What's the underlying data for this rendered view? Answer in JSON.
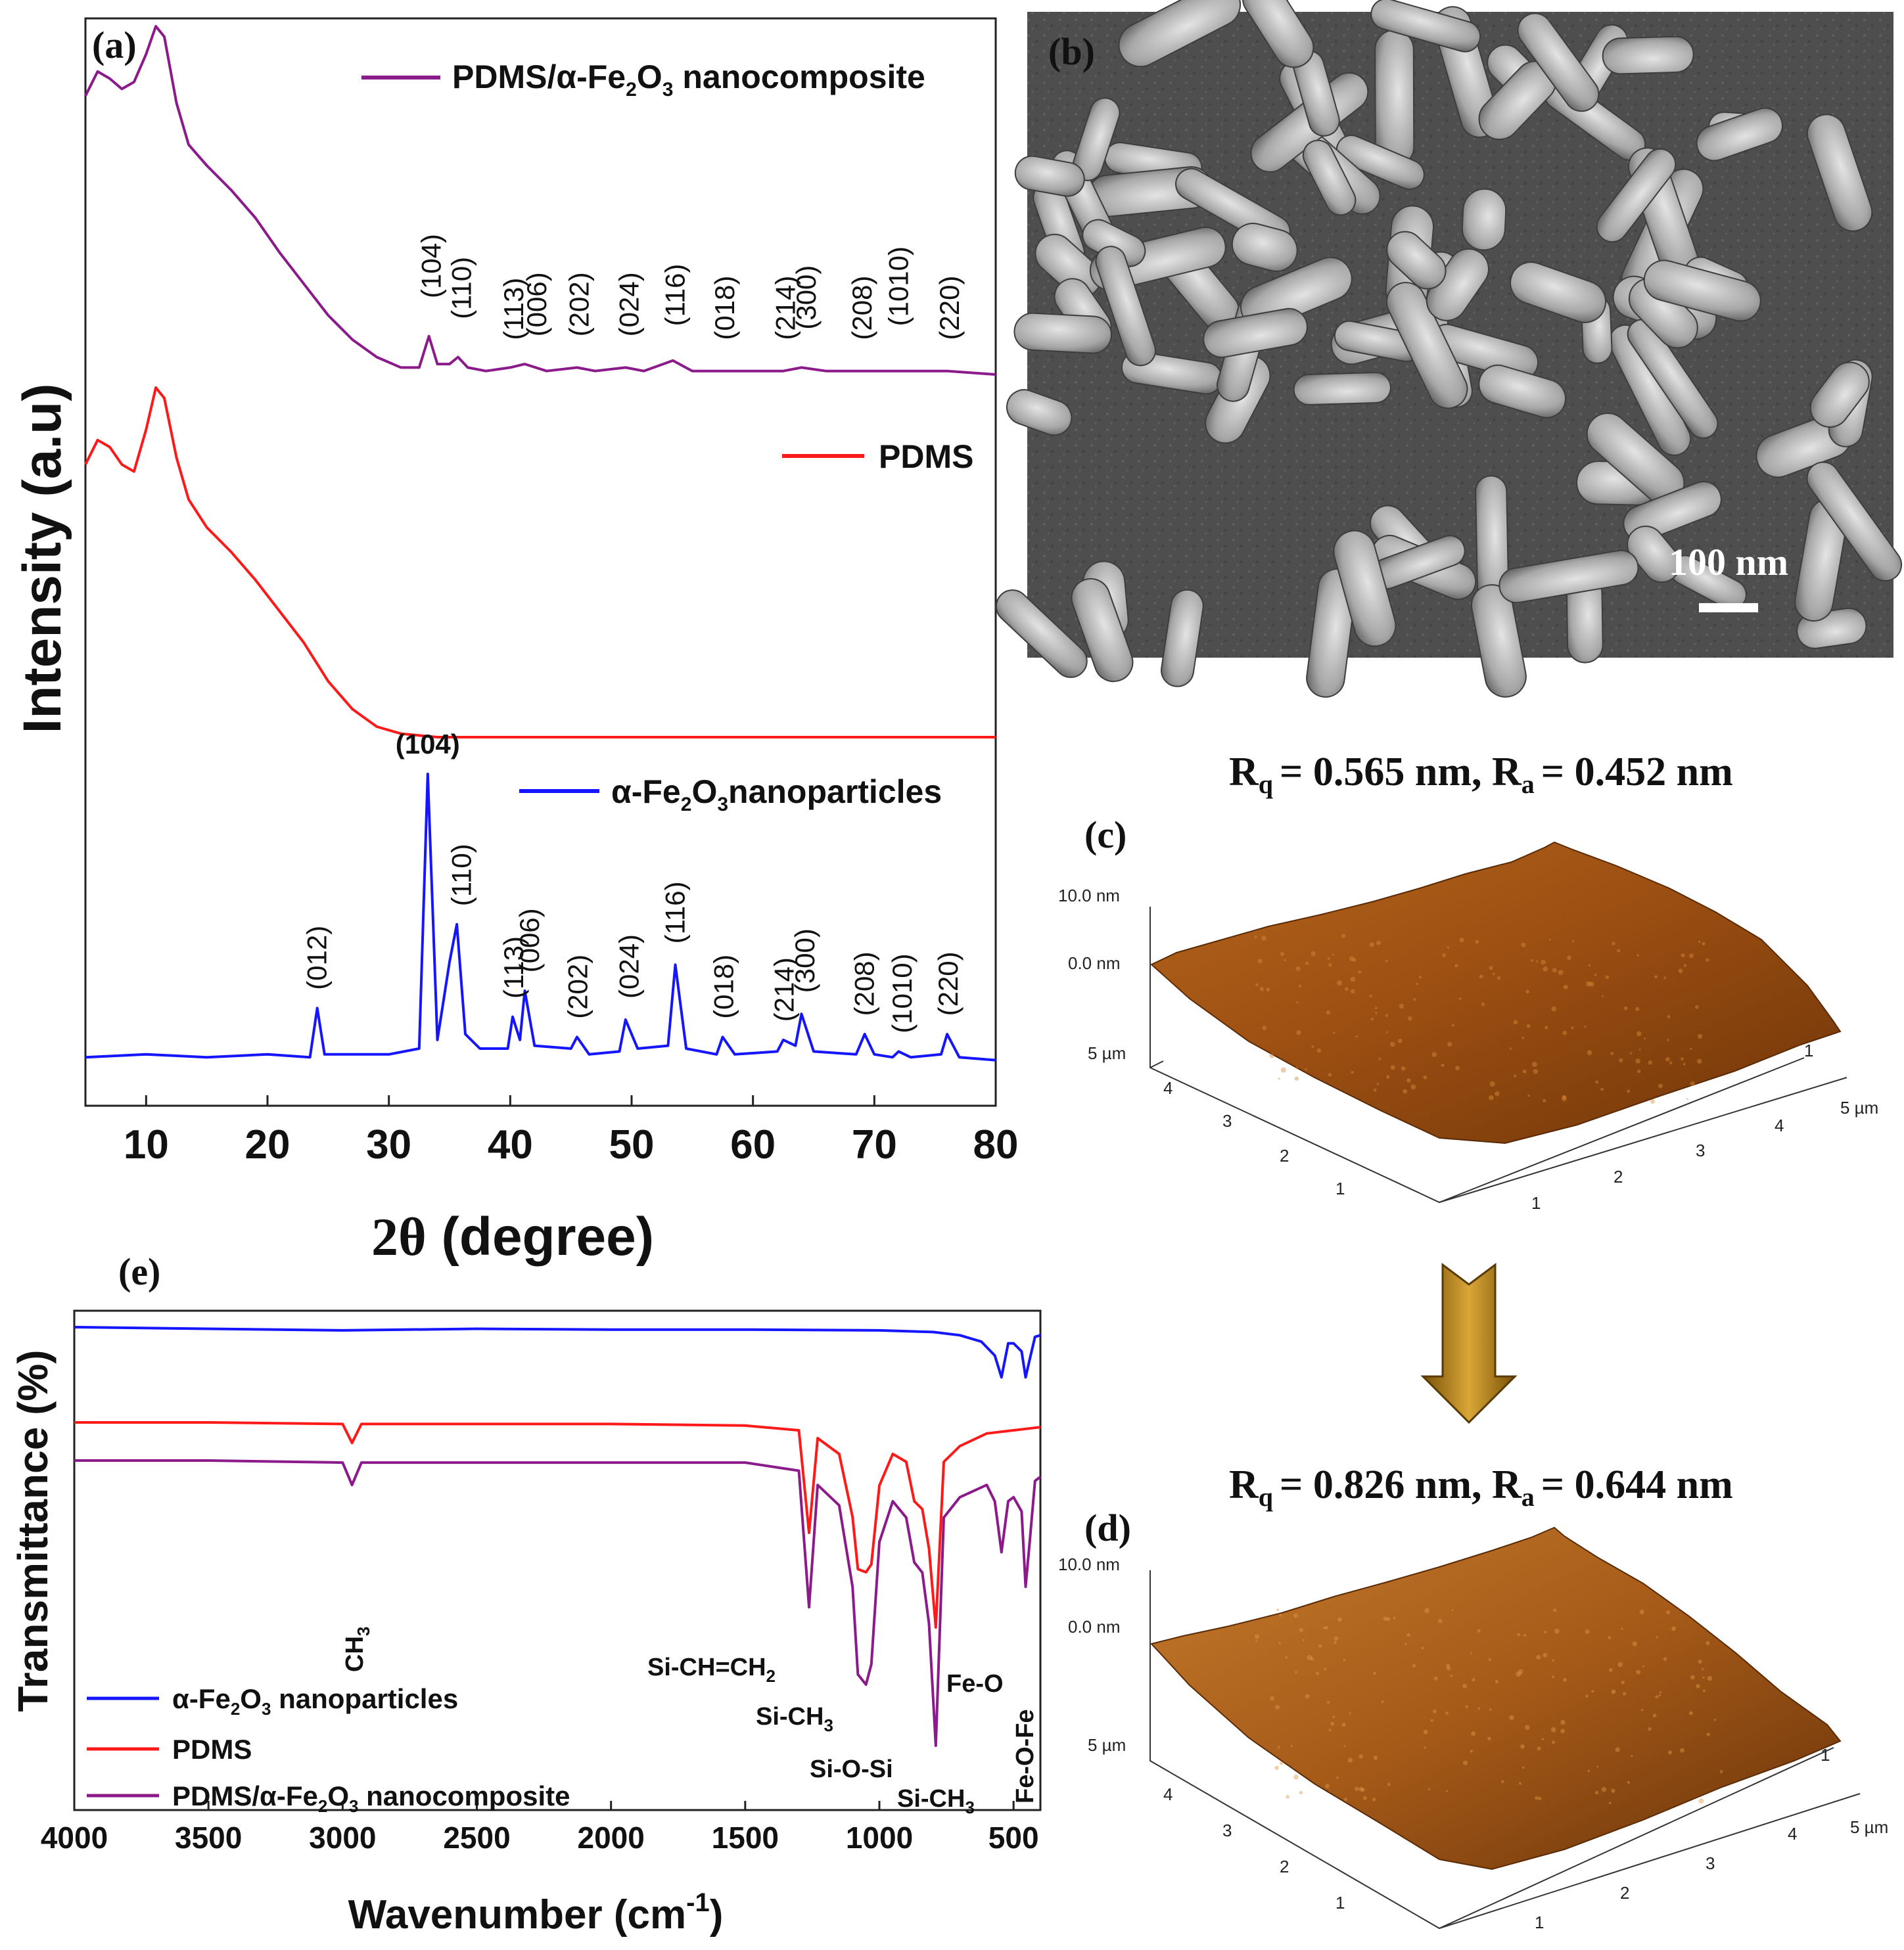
{
  "chart_data": [
    {
      "panel": "(a)",
      "type": "line",
      "xlabel": "2θ (degree)",
      "ylabel": "Intensity (a.u)",
      "xlim": [
        5,
        80
      ],
      "xticks": [
        10,
        20,
        30,
        40,
        50,
        60,
        70,
        80
      ],
      "legend": [
        "PDMS/α-Fe2O3 nanocomposite",
        "PDMS",
        "α-Fe2O3nanoparticles"
      ],
      "series": [
        {
          "name": "PDMS/α-Fe2O3 nanocomposite",
          "color": "#8b1a8b",
          "x": [
            5,
            6,
            7,
            8,
            9,
            10,
            10.8,
            11.5,
            12.5,
            13.5,
            15,
            17,
            19,
            21,
            23,
            25,
            27,
            29,
            31,
            32.5,
            33.3,
            34,
            35,
            35.7,
            36.5,
            38,
            40,
            41.2,
            43,
            45.5,
            47,
            49.5,
            51,
            53.4,
            55,
            57.5,
            60,
            62.5,
            64,
            66,
            69,
            72,
            76,
            80
          ],
          "values": [
            0.8,
            0.87,
            0.85,
            0.82,
            0.84,
            0.92,
            1.0,
            0.97,
            0.78,
            0.66,
            0.6,
            0.53,
            0.45,
            0.35,
            0.26,
            0.17,
            0.1,
            0.05,
            0.02,
            0.02,
            0.11,
            0.03,
            0.03,
            0.05,
            0.02,
            0.01,
            0.02,
            0.03,
            0.01,
            0.02,
            0.01,
            0.02,
            0.01,
            0.04,
            0.01,
            0.01,
            0.01,
            0.01,
            0.02,
            0.01,
            0.01,
            0.01,
            0.01,
            0.0
          ],
          "annotations": [
            "(104)",
            "(110)",
            "(113)",
            "(006)",
            "(202)",
            "(024)",
            "(116)",
            "(018)",
            "(214)",
            "(300)",
            "(208)",
            "(1010)",
            "(220)"
          ]
        },
        {
          "name": "PDMS",
          "color": "#ff1a1a",
          "x": [
            5,
            6,
            7,
            8,
            9,
            10,
            10.8,
            11.5,
            12.5,
            13.5,
            15,
            17,
            19,
            21,
            23,
            25,
            27,
            29,
            31,
            34,
            40,
            50,
            60,
            70,
            80
          ],
          "values": [
            0.78,
            0.85,
            0.83,
            0.78,
            0.76,
            0.88,
            1.0,
            0.97,
            0.8,
            0.68,
            0.6,
            0.53,
            0.45,
            0.36,
            0.27,
            0.16,
            0.08,
            0.03,
            0.01,
            0.0,
            0.0,
            0.0,
            0.0,
            0.0,
            0.0
          ]
        },
        {
          "name": "α-Fe2O3nanoparticles",
          "color": "#1515ff",
          "x": [
            5,
            10,
            15,
            20,
            23.5,
            24.1,
            24.7,
            30,
            32.5,
            33.2,
            34,
            35,
            35.6,
            36.3,
            37.5,
            39.8,
            40.2,
            40.8,
            41.2,
            42,
            45,
            45.5,
            46.5,
            49,
            49.5,
            50.5,
            53,
            53.6,
            54.5,
            57,
            57.5,
            58.5,
            62,
            62.5,
            63.5,
            64,
            65,
            68.5,
            69.2,
            70,
            71.5,
            72,
            73,
            75.5,
            76.0,
            77,
            80
          ],
          "values": [
            0.02,
            0.03,
            0.02,
            0.03,
            0.02,
            0.19,
            0.03,
            0.03,
            0.05,
            1.0,
            0.08,
            0.35,
            0.48,
            0.1,
            0.05,
            0.05,
            0.16,
            0.08,
            0.25,
            0.06,
            0.05,
            0.09,
            0.03,
            0.04,
            0.15,
            0.05,
            0.06,
            0.34,
            0.05,
            0.03,
            0.09,
            0.03,
            0.04,
            0.08,
            0.06,
            0.17,
            0.04,
            0.03,
            0.1,
            0.03,
            0.02,
            0.04,
            0.02,
            0.03,
            0.1,
            0.02,
            0.01
          ],
          "annotations": [
            "(012)",
            "(104)",
            "(110)",
            "(113)",
            "(006)",
            "(202)",
            "(024)",
            "(116)",
            "(018)",
            "(214)",
            "(300)",
            "(208)",
            "(1010)",
            "(220)"
          ]
        }
      ]
    },
    {
      "panel": "(e)",
      "type": "line",
      "xlabel": "Wavenumber (cm-1)",
      "ylabel": "Transmittance (%)",
      "xlim": [
        4000,
        400
      ],
      "xticks": [
        4000,
        3500,
        3000,
        2500,
        2000,
        1500,
        1000,
        500
      ],
      "legend": [
        "α-Fe2O3 nanoparticles",
        "PDMS",
        "PDMS/α-Fe2O3 nanocomposite"
      ],
      "series": [
        {
          "name": "α-Fe2O3 nanoparticles",
          "color": "#1515ff",
          "x": [
            4000,
            3500,
            3000,
            2500,
            2000,
            1500,
            1000,
            800,
            700,
            620,
            570,
            545,
            520,
            500,
            470,
            455,
            440,
            420,
            400
          ],
          "values": [
            0.0,
            0.02,
            0.04,
            0.02,
            0.03,
            0.03,
            0.04,
            0.06,
            0.1,
            0.18,
            0.35,
            0.62,
            0.2,
            0.2,
            0.3,
            0.62,
            0.4,
            0.12,
            0.1
          ]
        },
        {
          "name": "PDMS",
          "color": "#ff1a1a",
          "x": [
            4000,
            3500,
            3000,
            2965,
            2930,
            2500,
            2000,
            1500,
            1300,
            1262,
            1230,
            1150,
            1100,
            1080,
            1050,
            1030,
            1000,
            950,
            900,
            870,
            840,
            815,
            790,
            760,
            700,
            600,
            500,
            400
          ],
          "values": [
            0.05,
            0.05,
            0.06,
            0.18,
            0.06,
            0.06,
            0.06,
            0.07,
            0.1,
            0.75,
            0.15,
            0.25,
            0.65,
            0.98,
            1.0,
            0.95,
            0.45,
            0.25,
            0.3,
            0.55,
            0.6,
            0.85,
            1.35,
            0.3,
            0.2,
            0.12,
            0.1,
            0.08
          ]
        },
        {
          "name": "PDMS/α-Fe2O3 nanocomposite",
          "color": "#8b1a8b",
          "x": [
            4000,
            3500,
            3000,
            2965,
            2930,
            2500,
            2000,
            1500,
            1300,
            1262,
            1230,
            1150,
            1100,
            1080,
            1050,
            1030,
            1000,
            950,
            900,
            870,
            840,
            815,
            790,
            760,
            700,
            600,
            570,
            545,
            520,
            500,
            470,
            455,
            440,
            420,
            400
          ],
          "values": [
            0.0,
            0.0,
            0.01,
            0.12,
            0.01,
            0.01,
            0.01,
            0.01,
            0.05,
            0.72,
            0.12,
            0.22,
            0.62,
            1.05,
            1.1,
            1.0,
            0.4,
            0.2,
            0.28,
            0.5,
            0.55,
            0.8,
            1.4,
            0.28,
            0.18,
            0.12,
            0.2,
            0.45,
            0.2,
            0.18,
            0.25,
            0.62,
            0.4,
            0.1,
            0.08
          ]
        }
      ]
    }
  ],
  "panels": {
    "a": {
      "label": "(a)",
      "ylabel": "Intensity (a.u)",
      "xlabel_prefix": "2θ",
      "xlabel_suffix": "(degree)",
      "legend_composite_1": "PDMS/α-Fe",
      "legend_composite_sub2": "2",
      "legend_composite_O": "O",
      "legend_composite_sub3": "3",
      "legend_composite_2": "nanocomposite",
      "legend_pdms": "PDMS",
      "legend_np_1": "α-Fe",
      "legend_np_sub2": "2",
      "legend_np_O": "O",
      "legend_np_sub3": "3",
      "legend_np_2": "nanoparticles"
    },
    "b": {
      "label": "(b)",
      "scale_bar": "100 nm"
    },
    "c": {
      "label": "(c)",
      "rq_prefix": "R",
      "rq_sub": "q",
      "rq_value": "= 0.565 nm, R",
      "ra_sub": "a",
      "ra_value": "= 0.452 nm",
      "z_top": "10.0 nm",
      "z_zero": "0.0 nm",
      "axis_5um_left": "5 µm",
      "axis_5um_right": "5 µm",
      "ticks": [
        "1",
        "2",
        "3",
        "4"
      ]
    },
    "d": {
      "label": "(d)",
      "rq_prefix": "R",
      "rq_sub": "q",
      "rq_value": "= 0.826 nm, R",
      "ra_sub": "a",
      "ra_value": "= 0.644 nm",
      "z_top": "10.0 nm",
      "z_zero": "0.0 nm",
      "axis_5um_left": "5 µm",
      "axis_5um_right": "5 µm",
      "ticks": [
        "1",
        "2",
        "3",
        "4"
      ]
    },
    "e": {
      "label": "(e)",
      "ylabel": "Transmittance (%)",
      "xlabel": "Wavenumber (cm",
      "xlabel_sup": "-1",
      "xlabel_end": ")",
      "legend_np_1": "α-Fe",
      "legend_np_sub2": "2",
      "legend_np_O": "O",
      "legend_np_sub3": "3",
      "legend_np_2": " nanoparticles",
      "legend_pdms": "PDMS",
      "legend_comp_1": "PDMS/α-Fe",
      "legend_comp_sub2": "2",
      "legend_comp_O": "O",
      "legend_comp_sub3": "3",
      "legend_comp_2": " nanocomposite",
      "band_ch3": "CH",
      "band_ch3_sub": "3",
      "band_vinyl": "Si-CH=CH",
      "band_vinyl_sub": "2",
      "band_sich3_a": "Si-CH",
      "band_sich3_a_sub": "3",
      "band_siosi": "Si-O-Si",
      "band_sich3_b": "Si-CH",
      "band_sich3_b_sub": "3",
      "band_feo": "Fe-O",
      "band_feofe": "Fe-O-Fe"
    }
  }
}
